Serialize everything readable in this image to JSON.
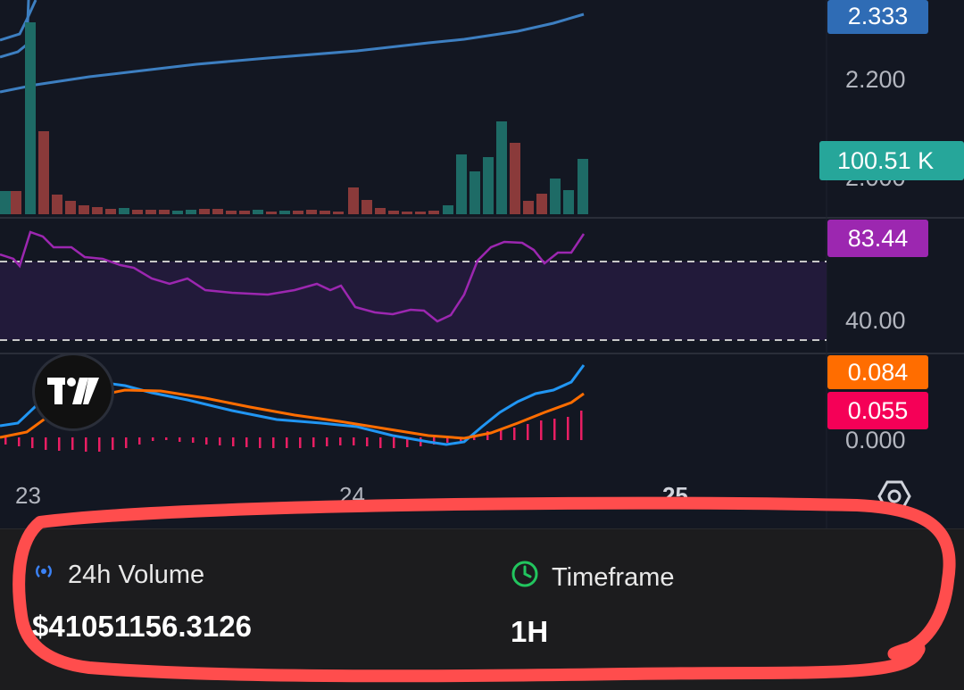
{
  "price_labels": {
    "current_price": "2.333",
    "volume_tag": "100.51 K",
    "rsi_tag": "83.44",
    "macd_tag": "0.084",
    "signal_tag": "0.055"
  },
  "price_axis": [
    "2.200",
    "2.000"
  ],
  "rsi_axis": [
    "40.00"
  ],
  "macd_axis": [
    "0.000"
  ],
  "time_axis": [
    "23",
    "24",
    "25"
  ],
  "colors": {
    "background": "#131722",
    "price_tag": "#2f6cb5",
    "volume_tag": "#26a69a",
    "rsi": "#9c27b0",
    "macd": "#ff6d00",
    "signal": "#f50057",
    "up": "#26a69a",
    "down": "#ef5350",
    "annotation": "#ff4d4d"
  },
  "stats": {
    "volume": {
      "icon": "signal-icon",
      "label": "24h Volume",
      "value": "$41051156.3126"
    },
    "timeframe": {
      "icon": "clock-icon",
      "label": "Timeframe",
      "value": "1H"
    }
  }
}
